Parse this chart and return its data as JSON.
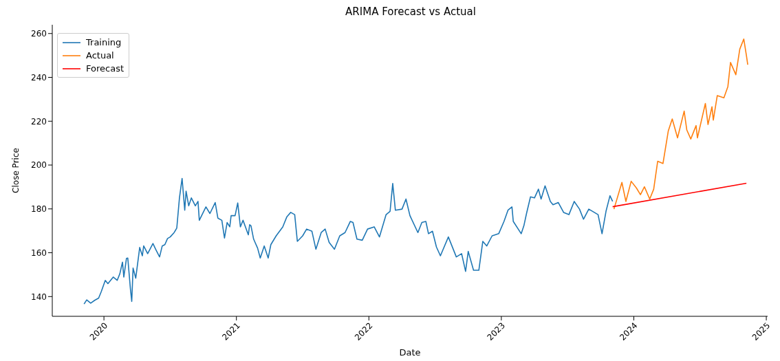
{
  "chart_data": {
    "type": "line",
    "title": "ARIMA Forecast vs Actual",
    "xlabel": "Date",
    "ylabel": "Close Price",
    "xlim": [
      2019.61,
      2025.01
    ],
    "xticks": [
      2020,
      2021,
      2022,
      2023,
      2024,
      2025
    ],
    "ylim": [
      131,
      264
    ],
    "yticks": [
      140,
      160,
      180,
      200,
      220,
      240,
      260
    ],
    "legend": "top left",
    "grid": false,
    "line_style": "solid",
    "marker": "none",
    "series": [
      {
        "name": "Training",
        "color": "#1f77b4",
        "x": [
          2019.85,
          2019.87,
          2019.9,
          2019.93,
          2019.96,
          2019.98,
          2020.01,
          2020.03,
          2020.07,
          2020.1,
          2020.12,
          2020.14,
          2020.15,
          2020.17,
          2020.18,
          2020.2,
          2020.21,
          2020.22,
          2020.24,
          2020.27,
          2020.29,
          2020.3,
          2020.33,
          2020.37,
          2020.39,
          2020.42,
          2020.44,
          2020.46,
          2020.48,
          2020.5,
          2020.53,
          2020.55,
          2020.57,
          2020.59,
          2020.61,
          2020.62,
          2020.64,
          2020.66,
          2020.69,
          2020.71,
          2020.72,
          2020.77,
          2020.8,
          2020.84,
          2020.86,
          2020.89,
          2020.91,
          2020.93,
          2020.95,
          2020.96,
          2020.99,
          2021.01,
          2021.03,
          2021.05,
          2021.09,
          2021.1,
          2021.11,
          2021.13,
          2021.16,
          2021.18,
          2021.21,
          2021.24,
          2021.26,
          2021.3,
          2021.35,
          2021.38,
          2021.41,
          2021.44,
          2021.46,
          2021.5,
          2021.53,
          2021.57,
          2021.6,
          2021.64,
          2021.67,
          2021.7,
          2021.74,
          2021.78,
          2021.82,
          2021.86,
          2021.88,
          2021.91,
          2021.95,
          2021.99,
          2022.04,
          2022.08,
          2022.13,
          2022.16,
          2022.18,
          2022.2,
          2022.25,
          2022.28,
          2022.31,
          2022.37,
          2022.4,
          2022.43,
          2022.45,
          2022.48,
          2022.51,
          2022.54,
          2022.6,
          2022.66,
          2022.7,
          2022.73,
          2022.75,
          2022.79,
          2022.83,
          2022.86,
          2022.89,
          2022.93,
          2022.98,
          2023.02,
          2023.05,
          2023.08,
          2023.09,
          2023.15,
          2023.17,
          2023.19,
          2023.22,
          2023.25,
          2023.28,
          2023.3,
          2023.33,
          2023.37,
          2023.39,
          2023.43,
          2023.47,
          2023.51,
          2023.55,
          2023.59,
          2023.62,
          2023.66,
          2023.73,
          2023.76,
          2023.79,
          2023.82,
          2023.84
        ],
        "values": [
          136.6,
          138.5,
          137,
          138.3,
          139.3,
          142.3,
          147.4,
          145.9,
          148.9,
          147.4,
          150.4,
          155.7,
          148.9,
          157.4,
          157.6,
          143.4,
          137.8,
          153,
          148.4,
          162.4,
          158.6,
          163.1,
          159.6,
          164.2,
          161.6,
          158.1,
          163.1,
          163.7,
          166.5,
          167.2,
          169.2,
          171.3,
          185,
          193.9,
          179.4,
          188.1,
          181.4,
          185,
          181.4,
          183.4,
          174.8,
          180.9,
          177.9,
          182.9,
          175.8,
          174.8,
          166.7,
          173.8,
          171.8,
          176.9,
          176.9,
          182.7,
          171.8,
          174.8,
          168.2,
          172.8,
          172.3,
          166.2,
          162.1,
          157.6,
          163.1,
          157.6,
          163.7,
          167.7,
          171.8,
          176.3,
          178.4,
          177.4,
          165.2,
          167.7,
          170.8,
          169.8,
          161.6,
          169.2,
          170.8,
          164.7,
          161.6,
          167.7,
          169.2,
          174.3,
          173.8,
          166.2,
          165.7,
          170.8,
          171.8,
          167.2,
          177.4,
          178.9,
          191.6,
          179.4,
          179.9,
          184.5,
          176.9,
          169.2,
          173.8,
          174.3,
          168.7,
          169.8,
          162.6,
          158.6,
          167.2,
          158.1,
          159.6,
          151.5,
          160.6,
          152,
          152,
          165.2,
          163.1,
          167.7,
          168.7,
          174.3,
          179.4,
          180.9,
          174.3,
          168.7,
          172.3,
          177.9,
          185.5,
          185,
          189,
          184.5,
          190.5,
          183.4,
          181.9,
          182.9,
          178.4,
          177.4,
          183.4,
          179.9,
          175.3,
          179.9,
          177.4,
          168.7,
          178.9,
          186,
          183.4
        ]
      },
      {
        "name": "Actual",
        "color": "#ff7f0e",
        "x": [
          2023.85,
          2023.91,
          2023.94,
          2023.98,
          2024.02,
          2024.05,
          2024.08,
          2024.12,
          2024.15,
          2024.18,
          2024.22,
          2024.26,
          2024.29,
          2024.33,
          2024.38,
          2024.4,
          2024.43,
          2024.47,
          2024.48,
          2024.54,
          2024.56,
          2024.59,
          2024.6,
          2024.63,
          2024.68,
          2024.71,
          2024.73,
          2024.77,
          2024.8,
          2024.83,
          2024.85,
          2024.86
        ],
        "values": [
          179.9,
          192.1,
          183.4,
          192.6,
          189.5,
          186.5,
          190.1,
          184.5,
          189,
          201.7,
          200.7,
          215.5,
          221,
          212.4,
          224.6,
          216,
          211.9,
          218,
          212.4,
          228.1,
          218.5,
          226.6,
          220.5,
          231.7,
          230.7,
          235.8,
          246.8,
          241.2,
          252.9,
          257.5,
          249.9,
          245.8
        ]
      },
      {
        "name": "Forecast",
        "color": "#ff0000",
        "x": [
          2023.84,
          2024.85
        ],
        "values": [
          181,
          191.7
        ]
      }
    ]
  }
}
